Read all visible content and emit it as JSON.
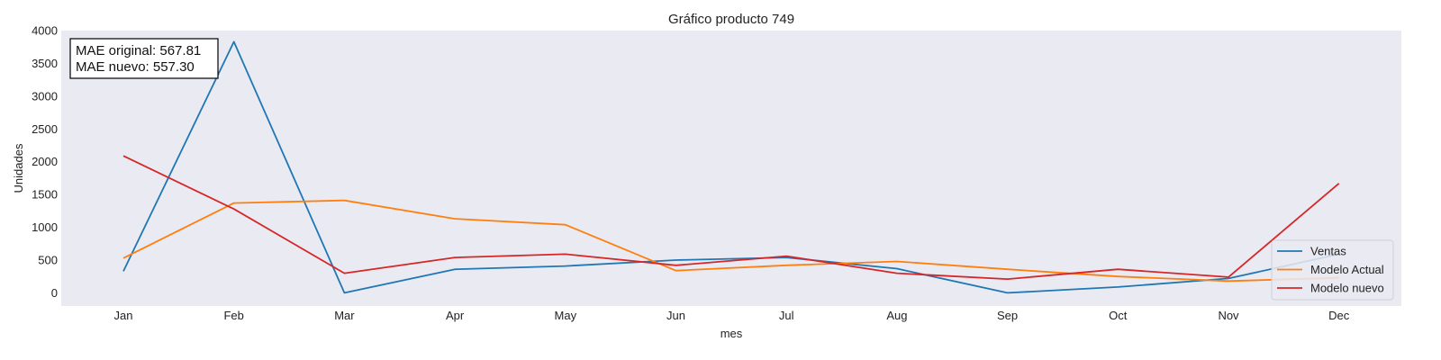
{
  "chart_data": {
    "type": "line",
    "title": "Gráfico producto 749",
    "xlabel": "mes",
    "ylabel": "Unidades",
    "categories": [
      "Jan",
      "Feb",
      "Mar",
      "Apr",
      "May",
      "Jun",
      "Jul",
      "Aug",
      "Sep",
      "Oct",
      "Nov",
      "Dec"
    ],
    "ylim": [
      -200,
      4000
    ],
    "yticks": [
      0,
      500,
      1000,
      1500,
      2000,
      2500,
      3000,
      3500,
      4000
    ],
    "grid": false,
    "legend_position": "lower-right",
    "series": [
      {
        "name": "Ventas",
        "color": "#1f77b4",
        "values": [
          330,
          3830,
          0,
          360,
          410,
          500,
          540,
          370,
          0,
          90,
          220,
          590
        ]
      },
      {
        "name": "Modelo Actual",
        "color": "#ff7f0e",
        "values": [
          530,
          1370,
          1410,
          1130,
          1040,
          340,
          420,
          480,
          360,
          250,
          180,
          230
        ]
      },
      {
        "name": "Modelo nuevo",
        "color": "#d62728",
        "values": [
          2090,
          1280,
          300,
          540,
          590,
          420,
          560,
          300,
          210,
          360,
          240,
          1670
        ]
      }
    ],
    "annotation": {
      "lines": [
        "MAE original: 567.81",
        "MAE nuevo: 557.30"
      ]
    }
  },
  "colors": {
    "plot_background": "#eaeaf2"
  }
}
